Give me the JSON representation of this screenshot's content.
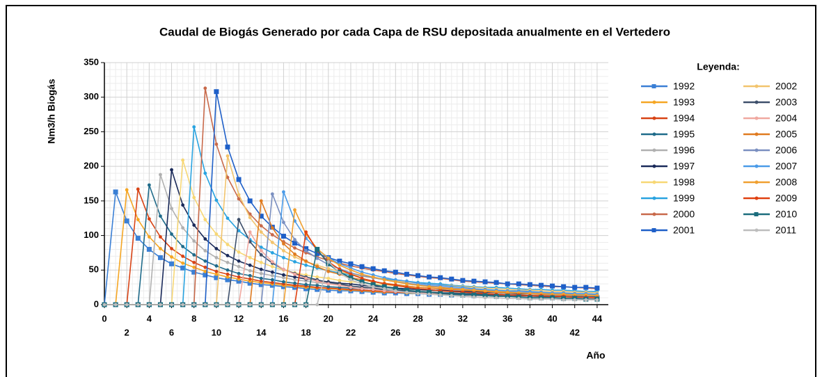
{
  "chart_data": {
    "type": "line",
    "title": "Caudal de Biogás Generado por cada Capa de RSU depositada anualmente en el Vertedero",
    "x_label": "Año",
    "y_label": "Nm3/h Biogás",
    "legend_title": "Leyenda:",
    "xlim": [
      0,
      45
    ],
    "ylim": [
      0,
      350
    ],
    "xticks": [
      0,
      2,
      4,
      6,
      8,
      10,
      12,
      14,
      16,
      18,
      20,
      22,
      24,
      26,
      28,
      30,
      32,
      34,
      36,
      38,
      40,
      42,
      44
    ],
    "yticks": [
      0,
      50,
      100,
      150,
      200,
      250,
      300,
      350
    ],
    "grid": true,
    "legend": "right",
    "x": [
      0,
      1,
      2,
      3,
      4,
      5,
      6,
      7,
      8,
      9,
      10,
      11,
      12,
      13,
      14,
      15,
      16,
      17,
      18,
      19,
      20,
      21,
      22,
      23,
      24,
      25,
      26,
      27,
      28,
      29,
      30,
      31,
      32,
      33,
      34,
      35,
      36,
      37,
      38,
      39,
      40,
      41,
      42,
      43,
      44
    ],
    "series": [
      {
        "name": "1992",
        "color": "#3a7fd5",
        "values": [
          0,
          163,
          121,
          96,
          80,
          68,
          59,
          53,
          47,
          43,
          39,
          36,
          34,
          31,
          29,
          28,
          26,
          25,
          23,
          22,
          21,
          20,
          20,
          19,
          18,
          17,
          17,
          16,
          16,
          15,
          15,
          14,
          14,
          13,
          13,
          13,
          12,
          12,
          12,
          11,
          11,
          11,
          11,
          10,
          10
        ]
      },
      {
        "name": "1993",
        "color": "#f5a623",
        "values": [
          0,
          0,
          166,
          123,
          98,
          81,
          69,
          60,
          54,
          48,
          44,
          40,
          37,
          34,
          32,
          30,
          28,
          27,
          25,
          24,
          23,
          22,
          21,
          20,
          19,
          18,
          18,
          17,
          16,
          16,
          15,
          15,
          14,
          14,
          14,
          13,
          13,
          12,
          12,
          12,
          12,
          11,
          11,
          11,
          11
        ]
      },
      {
        "name": "1994",
        "color": "#d84315",
        "values": [
          0,
          0,
          0,
          167,
          124,
          98,
          81,
          70,
          61,
          54,
          48,
          44,
          40,
          37,
          34,
          32,
          30,
          28,
          27,
          25,
          24,
          23,
          22,
          21,
          20,
          19,
          18,
          18,
          17,
          17,
          16,
          16,
          15,
          15,
          14,
          14,
          13,
          13,
          13,
          12,
          12,
          12,
          11,
          11,
          11
        ]
      },
      {
        "name": "1995",
        "color": "#1f6b8a",
        "values": [
          0,
          0,
          0,
          0,
          173,
          128,
          102,
          84,
          72,
          63,
          56,
          50,
          45,
          42,
          38,
          36,
          33,
          31,
          29,
          28,
          26,
          25,
          24,
          23,
          22,
          21,
          20,
          19,
          18,
          18,
          17,
          17,
          16,
          16,
          15,
          15,
          14,
          14,
          13,
          13,
          13,
          12,
          12,
          12,
          12
        ]
      },
      {
        "name": "1996",
        "color": "#b0b0b0",
        "values": [
          0,
          0,
          0,
          0,
          0,
          188,
          139,
          111,
          92,
          78,
          68,
          61,
          55,
          49,
          45,
          42,
          39,
          36,
          34,
          32,
          30,
          29,
          27,
          26,
          25,
          24,
          23,
          22,
          21,
          20,
          19,
          19,
          18,
          17,
          17,
          16,
          16,
          15,
          15,
          15,
          14,
          14,
          14,
          13,
          13
        ]
      },
      {
        "name": "1997",
        "color": "#1a2a5a",
        "values": [
          0,
          0,
          0,
          0,
          0,
          0,
          195,
          144,
          115,
          95,
          81,
          71,
          63,
          57,
          51,
          47,
          43,
          40,
          37,
          35,
          33,
          31,
          30,
          28,
          27,
          26,
          24,
          23,
          22,
          21,
          21,
          20,
          19,
          19,
          18,
          18,
          17,
          16,
          16,
          16,
          15,
          15,
          14,
          14,
          14
        ]
      },
      {
        "name": "1998",
        "color": "#f7d774",
        "values": [
          0,
          0,
          0,
          0,
          0,
          0,
          0,
          209,
          155,
          123,
          102,
          87,
          76,
          68,
          61,
          55,
          50,
          46,
          43,
          40,
          38,
          35,
          33,
          32,
          30,
          29,
          27,
          26,
          25,
          24,
          23,
          22,
          22,
          21,
          20,
          19,
          19,
          18,
          18,
          17,
          17,
          16,
          16,
          15,
          15
        ]
      },
      {
        "name": "1999",
        "color": "#29a3e0",
        "values": [
          0,
          0,
          0,
          0,
          0,
          0,
          0,
          0,
          257,
          190,
          151,
          125,
          107,
          94,
          83,
          75,
          68,
          62,
          57,
          53,
          49,
          46,
          43,
          41,
          39,
          37,
          35,
          34,
          32,
          31,
          30,
          28,
          27,
          26,
          25,
          25,
          24,
          23,
          22,
          22,
          21,
          21,
          20,
          19,
          19
        ]
      },
      {
        "name": "2000",
        "color": "#c8694a",
        "values": [
          0,
          0,
          0,
          0,
          0,
          0,
          0,
          0,
          0,
          313,
          232,
          184,
          153,
          131,
          114,
          101,
          91,
          82,
          75,
          69,
          64,
          60,
          56,
          53,
          50,
          48,
          45,
          43,
          41,
          39,
          38,
          36,
          34,
          33,
          32,
          31,
          30,
          29,
          28,
          27,
          26,
          26,
          25,
          24,
          23
        ]
      },
      {
        "name": "2001",
        "color": "#1e5fc8",
        "values": [
          0,
          0,
          0,
          0,
          0,
          0,
          0,
          0,
          0,
          0,
          308,
          228,
          181,
          150,
          128,
          112,
          99,
          89,
          81,
          74,
          68,
          63,
          59,
          55,
          52,
          49,
          47,
          44,
          42,
          40,
          39,
          37,
          35,
          34,
          33,
          32,
          30,
          30,
          29,
          28,
          27,
          26,
          25,
          25,
          24
        ]
      },
      {
        "name": "2002",
        "color": "#f2c46d",
        "values": [
          0,
          0,
          0,
          0,
          0,
          0,
          0,
          0,
          0,
          0,
          0,
          215,
          159,
          126,
          105,
          90,
          78,
          69,
          62,
          57,
          52,
          48,
          44,
          41,
          39,
          36,
          34,
          33,
          31,
          29,
          28,
          27,
          26,
          25,
          24,
          23,
          22,
          21,
          21,
          20,
          19,
          19,
          18,
          18,
          17
        ]
      },
      {
        "name": "2003",
        "color": "#3d4f6b",
        "values": [
          0,
          0,
          0,
          0,
          0,
          0,
          0,
          0,
          0,
          0,
          0,
          0,
          123,
          91,
          72,
          60,
          51,
          45,
          40,
          36,
          32,
          30,
          27,
          25,
          24,
          22,
          21,
          20,
          19,
          18,
          17,
          16,
          15,
          15,
          14,
          14,
          13,
          13,
          12,
          12,
          11,
          11,
          11,
          10,
          10
        ]
      },
      {
        "name": "2004",
        "color": "#f0a8a0",
        "values": [
          0,
          0,
          0,
          0,
          0,
          0,
          0,
          0,
          0,
          0,
          0,
          0,
          0,
          105,
          78,
          62,
          51,
          44,
          38,
          34,
          30,
          28,
          25,
          23,
          22,
          20,
          19,
          18,
          17,
          16,
          15,
          14,
          14,
          13,
          13,
          12,
          12,
          11,
          11,
          10,
          10,
          10,
          9,
          9,
          9
        ]
      },
      {
        "name": "2005",
        "color": "#e07b20",
        "values": [
          0,
          0,
          0,
          0,
          0,
          0,
          0,
          0,
          0,
          0,
          0,
          0,
          0,
          0,
          150,
          111,
          88,
          73,
          63,
          55,
          48,
          44,
          39,
          36,
          33,
          31,
          29,
          27,
          25,
          24,
          23,
          22,
          21,
          20,
          19,
          18,
          17,
          17,
          16,
          15,
          15,
          14,
          14,
          14,
          13
        ]
      },
      {
        "name": "2006",
        "color": "#7a8fc0",
        "values": [
          0,
          0,
          0,
          0,
          0,
          0,
          0,
          0,
          0,
          0,
          0,
          0,
          0,
          0,
          0,
          160,
          119,
          94,
          78,
          67,
          58,
          52,
          46,
          42,
          39,
          36,
          33,
          31,
          29,
          27,
          26,
          24,
          23,
          22,
          21,
          20,
          19,
          18,
          18,
          17,
          16,
          16,
          15,
          15,
          14
        ]
      },
      {
        "name": "2007",
        "color": "#4a9be8",
        "values": [
          0,
          0,
          0,
          0,
          0,
          0,
          0,
          0,
          0,
          0,
          0,
          0,
          0,
          0,
          0,
          0,
          163,
          121,
          96,
          80,
          68,
          59,
          53,
          47,
          43,
          39,
          36,
          34,
          31,
          29,
          28,
          26,
          25,
          23,
          22,
          21,
          20,
          20,
          19,
          18,
          17,
          17,
          16,
          16,
          15
        ]
      },
      {
        "name": "2008",
        "color": "#f0a030",
        "values": [
          0,
          0,
          0,
          0,
          0,
          0,
          0,
          0,
          0,
          0,
          0,
          0,
          0,
          0,
          0,
          0,
          0,
          137,
          102,
          81,
          67,
          57,
          50,
          44,
          40,
          36,
          33,
          30,
          28,
          26,
          25,
          23,
          22,
          21,
          20,
          19,
          18,
          17,
          16,
          16,
          15,
          15,
          14,
          14,
          13
        ]
      },
      {
        "name": "2009",
        "color": "#e04010",
        "values": [
          0,
          0,
          0,
          0,
          0,
          0,
          0,
          0,
          0,
          0,
          0,
          0,
          0,
          0,
          0,
          0,
          0,
          0,
          105,
          78,
          62,
          51,
          44,
          38,
          34,
          30,
          28,
          25,
          23,
          22,
          20,
          19,
          18,
          17,
          16,
          15,
          14,
          14,
          13,
          13,
          12,
          12,
          11,
          11,
          10
        ]
      },
      {
        "name": "2010",
        "color": "#1b6d7d",
        "values": [
          0,
          0,
          0,
          0,
          0,
          0,
          0,
          0,
          0,
          0,
          0,
          0,
          0,
          0,
          0,
          0,
          0,
          0,
          0,
          80,
          59,
          47,
          39,
          33,
          29,
          26,
          23,
          21,
          19,
          18,
          16,
          15,
          14,
          14,
          13,
          12,
          12,
          11,
          10,
          10,
          10,
          9,
          9,
          8,
          8
        ]
      },
      {
        "name": "2011",
        "color": "#bdbdbd",
        "values": [
          0,
          0,
          0,
          0,
          0,
          0,
          0,
          0,
          0,
          0,
          0,
          0,
          0,
          0,
          0,
          0,
          0,
          0,
          0,
          0,
          62,
          46,
          36,
          30,
          26,
          23,
          20,
          18,
          16,
          15,
          14,
          13,
          12,
          11,
          10,
          10,
          9,
          9,
          8,
          8,
          8,
          7,
          7,
          7,
          7
        ]
      }
    ]
  }
}
